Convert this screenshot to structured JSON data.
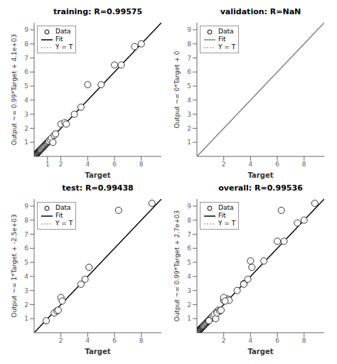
{
  "chart_data": [
    {
      "type": "scatter",
      "title": "training: R=0.99575",
      "x_label": "Target",
      "y_label": "Output ~= 0.99*Target + 4.1e+03",
      "xlim": [
        0,
        9.5
      ],
      "ylim": [
        0,
        9.5
      ],
      "xticks": [
        1,
        2,
        4,
        6,
        8
      ],
      "yticks": [
        1,
        2,
        3,
        4,
        5,
        6,
        7,
        8,
        9
      ],
      "grid": false,
      "legend": "upper left",
      "series": [
        {
          "name": "Data",
          "type": "scatter",
          "marker": "circle",
          "color": "black",
          "x": [
            0.02,
            0.03,
            0.04,
            0.05,
            0.06,
            0.07,
            0.08,
            0.09,
            0.1,
            0.11,
            0.12,
            0.13,
            0.14,
            0.15,
            0.16,
            0.17,
            0.18,
            0.2,
            0.22,
            0.25,
            0.28,
            0.3,
            0.32,
            0.35,
            0.38,
            0.4,
            0.42,
            0.45,
            0.48,
            0.5,
            0.55,
            0.6,
            0.65,
            0.7,
            0.75,
            0.8,
            0.85,
            0.9,
            0.95,
            1.0,
            1.05,
            1.1,
            1.2,
            1.3,
            1.4,
            1.5,
            1.6,
            2.0,
            2.3,
            2.4,
            3.0,
            3.5,
            4.0,
            5.0,
            6.0,
            6.5,
            7.5,
            8.0
          ],
          "values": [
            0.02,
            0.03,
            0.04,
            0.05,
            0.06,
            0.07,
            0.08,
            0.09,
            0.1,
            0.11,
            0.12,
            0.13,
            0.14,
            0.15,
            0.16,
            0.17,
            0.18,
            0.2,
            0.22,
            0.25,
            0.28,
            0.3,
            0.32,
            0.35,
            0.38,
            0.4,
            0.42,
            0.45,
            0.48,
            0.5,
            0.55,
            0.6,
            0.65,
            0.7,
            0.75,
            0.8,
            0.85,
            0.9,
            0.95,
            1.0,
            1.05,
            1.1,
            1.2,
            1.3,
            1.0,
            1.5,
            1.6,
            2.3,
            2.4,
            2.3,
            3.0,
            3.5,
            5.1,
            5.1,
            6.5,
            6.5,
            7.8,
            8.0
          ]
        },
        {
          "name": "Fit",
          "type": "line",
          "line_style": "solid",
          "color": "black",
          "x": [
            0,
            9.5
          ],
          "values": [
            0,
            9.5
          ]
        },
        {
          "name": "Y = T",
          "type": "line",
          "line_style": "dotted",
          "color": "#aaaaaa",
          "x": [
            0,
            9.5
          ],
          "values": [
            0,
            9.5
          ]
        }
      ]
    },
    {
      "type": "scatter",
      "title": "validation: R=NaN",
      "x_label": "Target",
      "y_label": "Output ~= 0*Target + 0",
      "xlim": [
        0,
        9.5
      ],
      "ylim": [
        0,
        9.5
      ],
      "xticks": [
        2,
        4,
        6,
        8
      ],
      "yticks": [
        1,
        2,
        3,
        4,
        5,
        6,
        7,
        8,
        9
      ],
      "grid": false,
      "legend": "upper left",
      "series": [
        {
          "name": "Data",
          "type": "scatter",
          "marker": "circle",
          "color": "black",
          "x": [],
          "values": []
        },
        {
          "name": "Fit",
          "type": "line",
          "line_style": "solid",
          "color": "gray",
          "x": [
            0,
            9.5
          ],
          "values": [
            0,
            9.5
          ]
        },
        {
          "name": "Y = T",
          "type": "line",
          "line_style": "dotted",
          "color": "#aaaaaa",
          "x": [
            0,
            9.5
          ],
          "values": [
            0,
            9.5
          ]
        }
      ]
    },
    {
      "type": "scatter",
      "title": "test: R=0.99438",
      "x_label": "Target",
      "y_label": "Output ~= 1*Target + -2.5e+03",
      "xlim": [
        0,
        9.5
      ],
      "ylim": [
        0,
        9.5
      ],
      "xticks": [
        2,
        4,
        6,
        8
      ],
      "yticks": [
        1,
        2,
        3,
        4,
        5,
        6,
        7,
        8,
        9
      ],
      "grid": false,
      "legend": "upper left",
      "series": [
        {
          "name": "Data",
          "type": "scatter",
          "marker": "circle",
          "color": "black",
          "x": [
            0.9,
            1.5,
            1.7,
            1.8,
            2.0,
            2.1,
            3.5,
            3.8,
            4.1,
            6.3,
            8.8
          ],
          "values": [
            0.85,
            1.4,
            1.55,
            1.6,
            2.5,
            2.25,
            3.45,
            3.8,
            4.65,
            8.7,
            9.2
          ]
        },
        {
          "name": "Fit",
          "type": "line",
          "line_style": "solid",
          "color": "black",
          "x": [
            0,
            9.5
          ],
          "values": [
            0,
            9.5
          ]
        },
        {
          "name": "Y = T",
          "type": "line",
          "line_style": "dotted",
          "color": "#aaaaaa",
          "x": [
            0,
            9.5
          ],
          "values": [
            0,
            9.5
          ]
        }
      ]
    },
    {
      "type": "scatter",
      "title": "overall: R=0.99536",
      "x_label": "Target",
      "y_label": "Output ~= 0.99*Target + 2.7e+03",
      "xlim": [
        0,
        9.5
      ],
      "ylim": [
        0,
        9.5
      ],
      "xticks": [
        2,
        4,
        6,
        8
      ],
      "yticks": [
        1,
        2,
        3,
        4,
        5,
        6,
        7,
        8,
        9
      ],
      "grid": false,
      "legend": "upper left",
      "series": [
        {
          "name": "Data",
          "type": "scatter",
          "marker": "circle",
          "color": "black",
          "x": [
            0.02,
            0.03,
            0.04,
            0.05,
            0.06,
            0.07,
            0.08,
            0.09,
            0.1,
            0.11,
            0.12,
            0.13,
            0.14,
            0.15,
            0.16,
            0.17,
            0.18,
            0.2,
            0.22,
            0.25,
            0.28,
            0.3,
            0.32,
            0.35,
            0.38,
            0.4,
            0.42,
            0.45,
            0.48,
            0.5,
            0.55,
            0.6,
            0.65,
            0.7,
            0.75,
            0.8,
            0.85,
            0.9,
            0.95,
            1.0,
            1.05,
            1.1,
            1.2,
            1.3,
            1.4,
            1.5,
            1.6,
            2.0,
            2.3,
            2.4,
            3.0,
            3.5,
            4.0,
            5.0,
            6.0,
            6.5,
            7.5,
            8.0,
            0.9,
            1.5,
            1.7,
            1.8,
            2.0,
            2.1,
            3.5,
            3.8,
            4.1,
            6.3,
            8.8
          ],
          "values": [
            0.02,
            0.03,
            0.04,
            0.05,
            0.06,
            0.07,
            0.08,
            0.09,
            0.1,
            0.11,
            0.12,
            0.13,
            0.14,
            0.15,
            0.16,
            0.17,
            0.18,
            0.2,
            0.22,
            0.25,
            0.28,
            0.3,
            0.32,
            0.35,
            0.38,
            0.4,
            0.42,
            0.45,
            0.48,
            0.5,
            0.55,
            0.6,
            0.65,
            0.7,
            0.75,
            0.8,
            0.85,
            0.9,
            0.95,
            1.0,
            1.05,
            1.1,
            1.2,
            1.3,
            1.0,
            1.5,
            1.6,
            2.3,
            2.4,
            2.3,
            3.0,
            3.5,
            5.1,
            5.1,
            6.5,
            6.5,
            7.8,
            8.0,
            0.85,
            1.4,
            1.55,
            1.6,
            2.5,
            2.25,
            3.45,
            3.8,
            4.65,
            8.7,
            9.2
          ]
        },
        {
          "name": "Fit",
          "type": "line",
          "line_style": "solid",
          "color": "black",
          "x": [
            0,
            9.5
          ],
          "values": [
            0,
            9.5
          ]
        },
        {
          "name": "Y = T",
          "type": "line",
          "line_style": "dotted",
          "color": "#aaaaaa",
          "x": [
            0,
            9.5
          ],
          "values": [
            0,
            9.5
          ]
        }
      ]
    }
  ]
}
